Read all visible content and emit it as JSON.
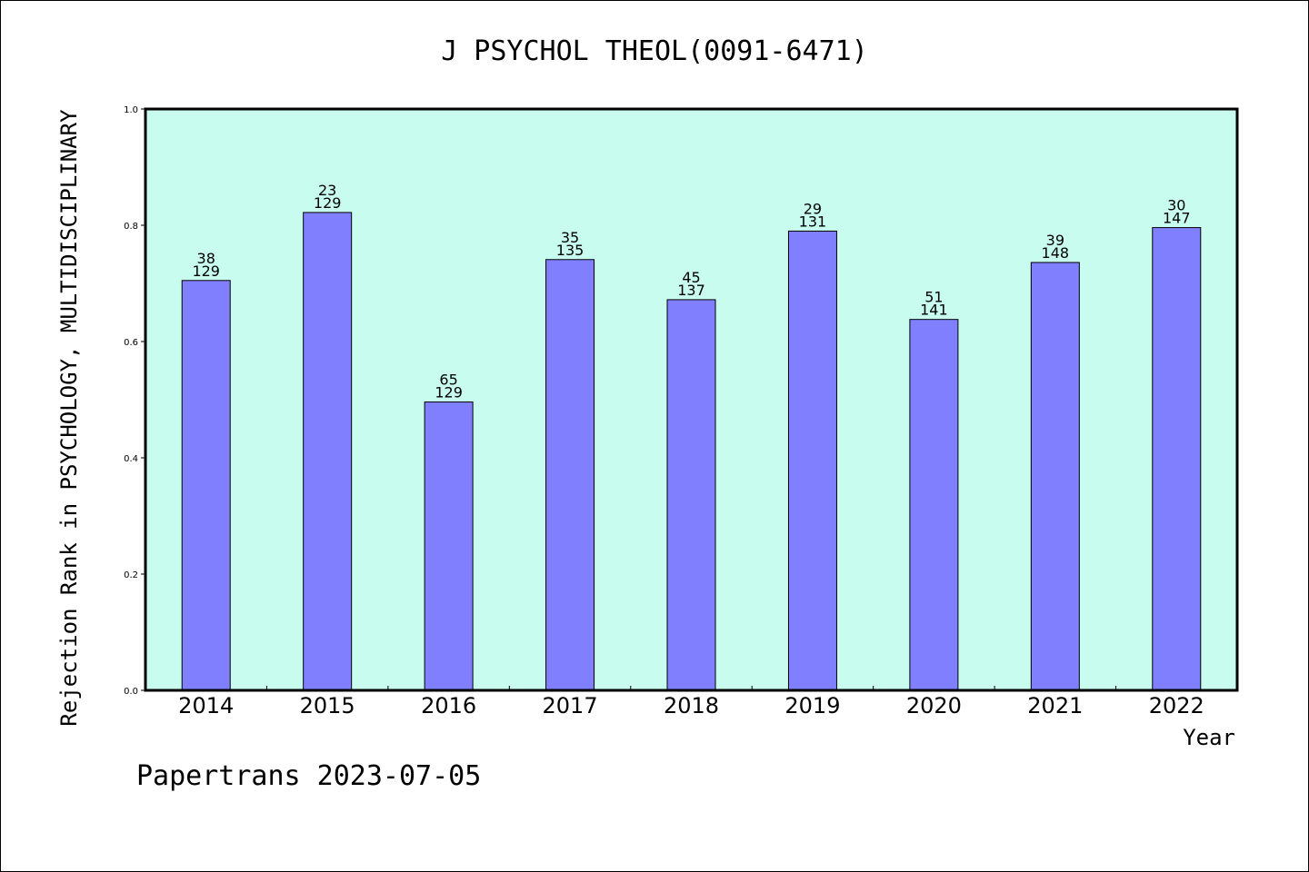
{
  "chart_data": {
    "type": "bar",
    "title": "J PSYCHOL THEOL(0091-6471)",
    "xlabel": "Year",
    "ylabel": "Rejection Rank in PSYCHOLOGY, MULTIDISCIPLINARY",
    "categories": [
      "2014",
      "2015",
      "2016",
      "2017",
      "2018",
      "2019",
      "2020",
      "2021",
      "2022"
    ],
    "values": [
      0.705,
      0.822,
      0.496,
      0.741,
      0.672,
      0.79,
      0.638,
      0.736,
      0.796
    ],
    "rank": [
      "38",
      "23",
      "65",
      "35",
      "45",
      "29",
      "51",
      "39",
      "30"
    ],
    "total": [
      "129",
      "129",
      "129",
      "135",
      "137",
      "131",
      "141",
      "148",
      "147"
    ],
    "ylim": [
      0,
      1.0
    ],
    "yticks": [
      "0.0",
      "0.2",
      "0.4",
      "0.6",
      "0.8",
      "1.0"
    ],
    "grid": false,
    "colors": {
      "bar_fill": "#8080ff",
      "plot_background": "#c8fcee",
      "axis": "#000000"
    }
  },
  "footer": {
    "text": "Papertrans 2023-07-05"
  }
}
